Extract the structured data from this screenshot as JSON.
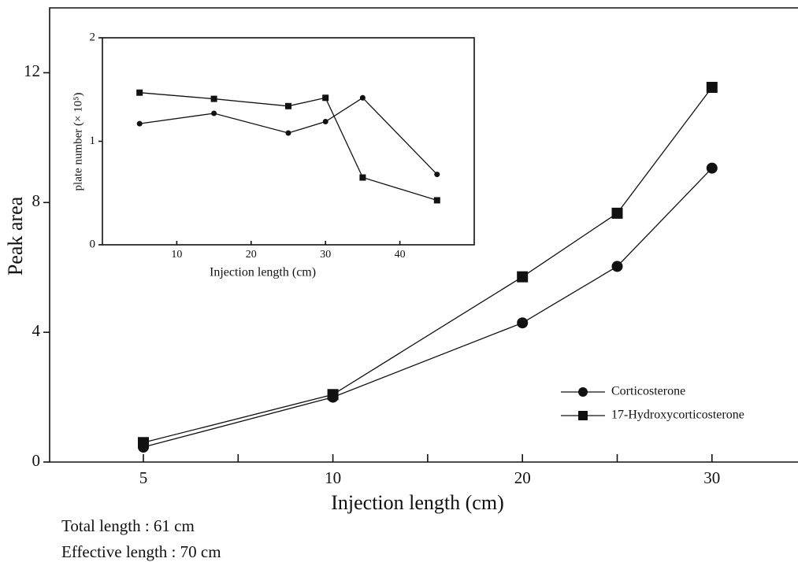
{
  "chart_data": [
    {
      "type": "line",
      "x_label": "Injection length (cm)",
      "y_label": "Peak area",
      "categories": [
        "5",
        "10",
        "20",
        null,
        "30"
      ],
      "ylim": [
        0,
        14
      ],
      "yticks": [
        0,
        4,
        8,
        12
      ],
      "series": [
        {
          "name": "Corticosterone",
          "color": "#111111",
          "marker": "circle",
          "values": [
            0.46,
            2.0,
            4.29,
            6.03,
            9.06
          ]
        },
        {
          "name": "17-Hydroxycorticosterone",
          "color": "#111111",
          "marker": "square",
          "values": [
            0.6,
            2.08,
            5.71,
            7.67,
            11.55
          ]
        }
      ],
      "annotations": [
        "Total length : 61 cm",
        "Effective length : 70 cm"
      ]
    },
    {
      "type": "line",
      "x_label": "Injection length (cm)",
      "y_label": "plate number (× 10⁵)",
      "x": [
        5,
        15,
        25,
        30,
        35,
        45
      ],
      "xlim": [
        0,
        50
      ],
      "xticks": [
        10,
        20,
        30,
        40
      ],
      "ylim": [
        0,
        2
      ],
      "yticks": [
        0,
        1,
        2
      ],
      "series": [
        {
          "name": "Corticosterone",
          "color": "#111111",
          "marker": "circle",
          "values": [
            1.17,
            1.27,
            1.08,
            1.19,
            1.42,
            0.68
          ]
        },
        {
          "name": "17-Hydroxycorticosterone",
          "color": "#111111",
          "marker": "square",
          "values": [
            1.47,
            1.41,
            1.34,
            1.42,
            0.65,
            0.43
          ]
        }
      ]
    }
  ]
}
